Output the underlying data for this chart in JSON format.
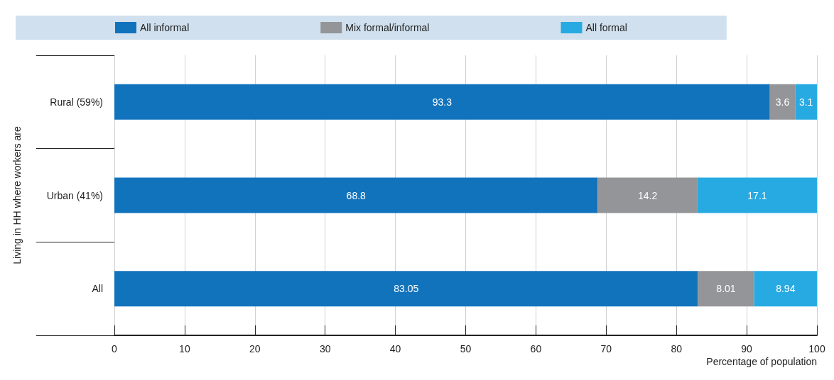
{
  "chart_data": {
    "type": "bar",
    "orientation": "horizontal",
    "stacked": true,
    "ylabel": "Living in HH where workers are",
    "xlabel": "Percentage of population",
    "categories": [
      "Rural (59%)",
      "Urban (41%)",
      "All"
    ],
    "series": [
      {
        "name": "All informal",
        "color": "#1273bd",
        "values": [
          93.3,
          68.8,
          83.05
        ]
      },
      {
        "name": "Mix formal/informal",
        "color": "#939598",
        "values": [
          3.6,
          14.2,
          8.01
        ]
      },
      {
        "name": "All formal",
        "color": "#27aae1",
        "values": [
          3.1,
          17.1,
          8.94
        ]
      }
    ],
    "xlim": [
      0,
      100
    ],
    "xticks": [
      0,
      10,
      20,
      30,
      40,
      50,
      60,
      70,
      80,
      90,
      100
    ],
    "grid": "x",
    "legend": "top",
    "data_labels": true
  }
}
